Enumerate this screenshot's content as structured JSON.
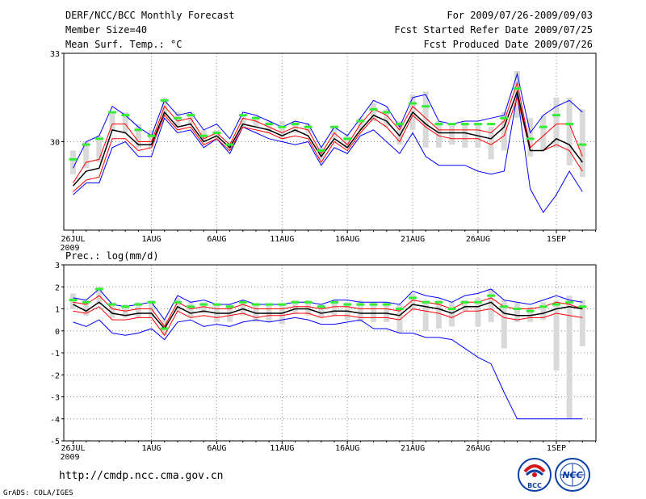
{
  "header": {
    "title": "DERF/NCC/BCC Monthly Forecast",
    "member_size": "Member Size=40",
    "variable": "Mean Surf. Temp.: °C",
    "period": "For 2009/07/26-2009/09/03",
    "start_date": "Fcst Started Refer Date 2009/07/25",
    "produced_date": "Fcst Produced Date 2009/07/26"
  },
  "footer": {
    "url": "http://cmdp.ncc.cma.gov.cn",
    "credit": "GrADS: COLA/IGES",
    "logo_bcc_label": "BCC",
    "logo_ncc_label": "NCC"
  },
  "colors": {
    "envelope": "#0000ff",
    "spread": "#ff0000",
    "mean": "#000000",
    "box": "#d9d9d9",
    "obs": "#33ee33"
  },
  "chart_data": [
    {
      "type": "line",
      "title": "Mean Surf. Temp.: °C",
      "x_tick_labels": [
        "26JUL",
        "1AUG",
        "6AUG",
        "11AUG",
        "16AUG",
        "21AUG",
        "26AUG",
        "1SEP"
      ],
      "x_tick_sublabel": "2009",
      "y_tick_labels": [
        "33",
        "30"
      ],
      "ylim": [
        27,
        33
      ],
      "x_days": 40,
      "series": [
        {
          "name": "max",
          "values": [
            28.2,
            28.6,
            28.6,
            29.8,
            30.0,
            29.5,
            29.5,
            30.8,
            30.3,
            30.4,
            29.8,
            30.1,
            29.6,
            30.5,
            30.3,
            30.1,
            30.0,
            29.9,
            30.0,
            29.2,
            29.8,
            29.6,
            30.2,
            30.4,
            30.0,
            29.6,
            30.3,
            29.5,
            29.2,
            29.2,
            29.2,
            29.0,
            28.9,
            29.0,
            31.6,
            28.4,
            27.6,
            28.2,
            29.0,
            28.3
          ]
        },
        {
          "name": "upper",
          "values": [
            29.1,
            30.0,
            30.2,
            31.2,
            30.9,
            30.5,
            30.2,
            31.4,
            30.9,
            31.0,
            30.4,
            30.6,
            30.1,
            31.0,
            30.9,
            30.7,
            30.5,
            30.7,
            30.6,
            29.8,
            30.5,
            30.2,
            30.8,
            31.4,
            31.2,
            30.5,
            31.5,
            31.6,
            30.7,
            30.6,
            30.7,
            30.7,
            30.8,
            30.9,
            32.3,
            30.3,
            30.9,
            31.2,
            31.4,
            31.0
          ]
        },
        {
          "name": "spread_hi",
          "values": [
            28.6,
            29.3,
            29.4,
            30.6,
            30.6,
            30.0,
            30.0,
            31.2,
            30.7,
            30.8,
            30.1,
            30.3,
            29.9,
            30.8,
            30.7,
            30.5,
            30.3,
            30.5,
            30.4,
            29.6,
            30.3,
            29.9,
            30.6,
            31.1,
            30.9,
            30.4,
            31.2,
            30.8,
            30.4,
            30.4,
            30.4,
            30.4,
            30.3,
            30.7,
            32.0,
            29.8,
            30.2,
            30.6,
            30.6,
            29.5
          ]
        },
        {
          "name": "spread_lo",
          "values": [
            28.3,
            28.7,
            28.8,
            30.1,
            30.1,
            29.7,
            29.8,
            30.9,
            30.4,
            30.5,
            29.9,
            30.1,
            29.7,
            30.5,
            30.4,
            30.3,
            30.1,
            30.2,
            30.1,
            29.3,
            30.0,
            29.7,
            30.3,
            30.8,
            30.5,
            30.0,
            30.9,
            30.5,
            30.2,
            30.1,
            30.1,
            30.1,
            29.9,
            30.2,
            31.5,
            29.7,
            29.7,
            29.9,
            29.7,
            29.0
          ]
        },
        {
          "name": "mean",
          "values": [
            28.5,
            29.0,
            29.1,
            30.4,
            30.3,
            29.9,
            29.9,
            31.0,
            30.5,
            30.6,
            30.0,
            30.2,
            29.8,
            30.6,
            30.5,
            30.4,
            30.2,
            30.4,
            30.2,
            29.5,
            30.1,
            29.8,
            30.4,
            30.9,
            30.7,
            30.2,
            31.0,
            30.6,
            30.3,
            30.3,
            30.3,
            30.2,
            30.1,
            30.5,
            31.7,
            29.7,
            29.7,
            30.1,
            29.9,
            29.3
          ]
        },
        {
          "name": "observed",
          "values": [
            29.4,
            29.9,
            30.1,
            31.0,
            30.9,
            30.4,
            30.2,
            31.4,
            30.8,
            30.9,
            30.2,
            30.3,
            29.9,
            30.9,
            30.8,
            30.6,
            30.5,
            30.6,
            30.5,
            29.7,
            30.5,
            30.1,
            30.7,
            31.1,
            31.0,
            30.6,
            31.3,
            31.2,
            30.6,
            30.6,
            30.6,
            30.6,
            30.6,
            30.8,
            31.8,
            30.1,
            30.5,
            30.9,
            30.6,
            29.9
          ]
        },
        {
          "name": "box_top",
          "values": [
            29.7,
            30.0,
            30.2,
            31.0,
            31.0,
            30.6,
            30.4,
            31.5,
            31.0,
            31.0,
            30.4,
            30.4,
            30.0,
            30.9,
            30.9,
            30.7,
            30.7,
            30.7,
            30.6,
            29.8,
            30.5,
            30.2,
            30.8,
            31.3,
            31.1,
            30.7,
            31.6,
            31.7,
            30.7,
            30.6,
            30.6,
            30.6,
            30.5,
            31.0,
            32.4,
            30.8,
            30.9,
            31.5,
            31.5,
            31.1
          ]
        },
        {
          "name": "box_bottom",
          "values": [
            28.9,
            29.1,
            29.3,
            30.4,
            30.3,
            29.8,
            29.8,
            30.9,
            30.5,
            30.6,
            30.0,
            30.0,
            29.7,
            30.5,
            30.5,
            30.3,
            30.1,
            30.3,
            30.3,
            29.4,
            30.1,
            29.8,
            30.4,
            30.7,
            30.5,
            29.9,
            30.4,
            29.8,
            29.8,
            29.9,
            29.8,
            29.8,
            29.4,
            29.7,
            30.8,
            29.5,
            29.7,
            29.8,
            29.2,
            28.8
          ]
        }
      ]
    },
    {
      "type": "line",
      "title": "Prec.: log(mm/d)",
      "x_tick_labels": [
        "26JUL",
        "1AUG",
        "6AUG",
        "11AUG",
        "16AUG",
        "21AUG",
        "26AUG",
        "1SEP"
      ],
      "x_tick_sublabel": "2009",
      "y_tick_labels": [
        "3",
        "2",
        "1",
        "0",
        "-1",
        "-2",
        "-3",
        "-4",
        "-5"
      ],
      "ylim": [
        -5,
        3
      ],
      "x_days": 40,
      "series": [
        {
          "name": "min",
          "values": [
            0.4,
            0.2,
            0.5,
            -0.1,
            -0.2,
            -0.1,
            0.1,
            -0.4,
            0.4,
            0.5,
            0.2,
            0.3,
            0.2,
            0.4,
            0.5,
            0.4,
            0.5,
            0.6,
            0.5,
            0.3,
            0.3,
            0.4,
            0.5,
            0.1,
            0.1,
            -0.1,
            -0.1,
            -0.3,
            -0.3,
            -0.4,
            -0.8,
            -1.2,
            -1.5,
            -2.8,
            -4.0,
            -4.0,
            -4.0,
            -4.0,
            -4.0,
            -4.0
          ]
        },
        {
          "name": "upper",
          "values": [
            1.5,
            1.4,
            1.9,
            1.2,
            1.1,
            1.2,
            1.3,
            0.5,
            1.6,
            1.3,
            1.4,
            1.2,
            1.2,
            1.4,
            1.2,
            1.2,
            1.2,
            1.3,
            1.3,
            1.2,
            1.4,
            1.4,
            1.3,
            1.3,
            1.3,
            1.2,
            1.8,
            1.6,
            1.5,
            1.3,
            1.6,
            1.7,
            1.9,
            1.4,
            1.3,
            1.2,
            1.4,
            1.6,
            1.4,
            1.3
          ]
        },
        {
          "name": "spread_hi",
          "values": [
            1.3,
            1.2,
            1.6,
            1.0,
            0.9,
            1.0,
            1.0,
            0.2,
            1.3,
            1.0,
            1.1,
            1.0,
            1.0,
            1.2,
            1.0,
            1.0,
            1.0,
            1.1,
            1.1,
            1.0,
            1.1,
            1.1,
            1.0,
            1.0,
            1.0,
            0.9,
            1.4,
            1.3,
            1.2,
            1.0,
            1.3,
            1.3,
            1.5,
            1.1,
            1.0,
            1.0,
            1.1,
            1.3,
            1.2,
            1.0
          ]
        },
        {
          "name": "spread_lo",
          "values": [
            0.9,
            0.8,
            1.1,
            0.5,
            0.5,
            0.6,
            0.6,
            -0.2,
            0.9,
            0.6,
            0.7,
            0.6,
            0.7,
            0.8,
            0.6,
            0.7,
            0.7,
            0.8,
            0.8,
            0.6,
            0.7,
            0.7,
            0.6,
            0.6,
            0.6,
            0.5,
            1.0,
            0.9,
            0.8,
            0.6,
            0.9,
            0.9,
            1.0,
            0.6,
            0.5,
            0.6,
            0.6,
            0.8,
            0.7,
            0.6
          ]
        },
        {
          "name": "mean",
          "values": [
            1.2,
            0.9,
            1.3,
            0.8,
            0.7,
            0.8,
            0.8,
            0.1,
            1.1,
            0.8,
            0.9,
            0.8,
            0.8,
            1.0,
            0.8,
            0.8,
            0.8,
            1.0,
            1.0,
            0.8,
            0.9,
            0.9,
            0.8,
            0.8,
            0.8,
            0.7,
            1.2,
            1.1,
            1.0,
            0.8,
            1.1,
            1.1,
            1.3,
            0.8,
            0.7,
            0.7,
            0.8,
            1.0,
            1.1,
            1.0
          ]
        },
        {
          "name": "observed",
          "values": [
            1.4,
            1.3,
            1.9,
            1.2,
            1.1,
            1.2,
            1.3,
            0.1,
            1.3,
            1.1,
            1.2,
            1.2,
            1.1,
            1.3,
            1.2,
            1.2,
            1.2,
            1.3,
            1.3,
            1.1,
            1.3,
            1.2,
            1.2,
            1.2,
            1.2,
            1.0,
            1.5,
            1.3,
            1.3,
            1.0,
            1.3,
            1.3,
            1.6,
            1.1,
            1.0,
            0.9,
            1.1,
            1.2,
            1.3,
            1.1
          ]
        },
        {
          "name": "box_top",
          "values": [
            1.7,
            1.4,
            2.0,
            1.3,
            1.2,
            1.3,
            1.4,
            0.5,
            1.5,
            1.3,
            1.3,
            1.2,
            1.2,
            1.4,
            1.2,
            1.2,
            1.2,
            1.4,
            1.4,
            1.2,
            1.4,
            1.3,
            1.4,
            1.3,
            1.3,
            1.2,
            1.7,
            1.4,
            1.4,
            1.3,
            1.4,
            1.5,
            1.9,
            1.4,
            1.3,
            1.1,
            1.3,
            1.4,
            1.6,
            1.4
          ]
        },
        {
          "name": "box_bottom",
          "values": [
            1.0,
            0.7,
            1.2,
            0.6,
            0.6,
            0.6,
            0.6,
            -0.2,
            0.9,
            0.6,
            0.8,
            0.4,
            0.4,
            0.7,
            0.4,
            0.4,
            0.3,
            0.8,
            0.7,
            0.6,
            0.7,
            0.5,
            0.4,
            0.4,
            0.4,
            -0.1,
            0.9,
            0.0,
            0.1,
            0.2,
            0.9,
            0.2,
            0.4,
            -0.8,
            0.4,
            0.4,
            0.5,
            -1.8,
            -4.0,
            -0.7
          ]
        }
      ]
    }
  ]
}
